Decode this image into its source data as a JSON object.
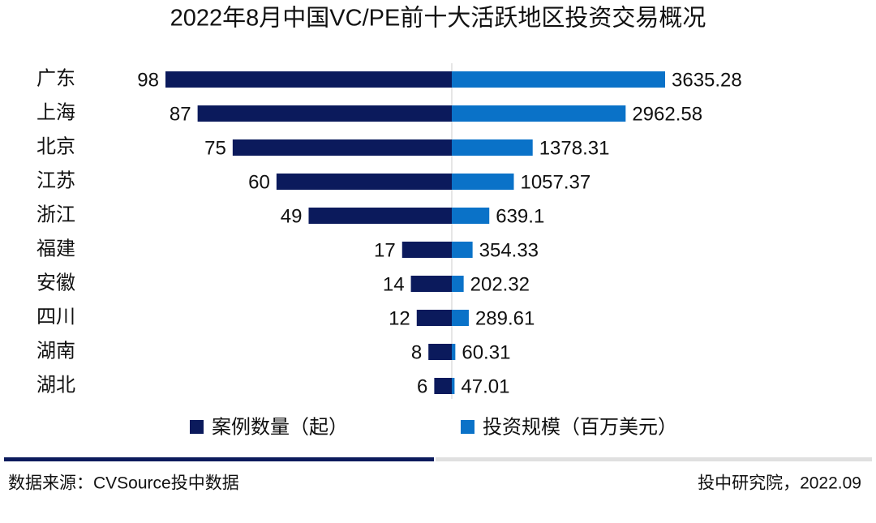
{
  "chart_data": {
    "type": "butterfly_bar",
    "title": "2022年8月中国VC/PE前十大活跃地区投资交易概况",
    "categories": [
      "广东",
      "上海",
      "北京",
      "江苏",
      "浙江",
      "福建",
      "安徽",
      "四川",
      "湖南",
      "湖北"
    ],
    "series": [
      {
        "name": "案例数量（起）",
        "color": "#0b1a5c",
        "values": [
          98,
          87,
          75,
          60,
          49,
          17,
          14,
          12,
          8,
          6
        ]
      },
      {
        "name": "投资规模（百万美元）",
        "color": "#0a72c8",
        "values": [
          3635.28,
          2962.58,
          1378.31,
          1057.37,
          639.1,
          354.33,
          202.32,
          289.61,
          60.31,
          47.01
        ]
      }
    ],
    "source": "数据来源：CVSource投中数据",
    "credit": "投中研究院，2022.09"
  }
}
